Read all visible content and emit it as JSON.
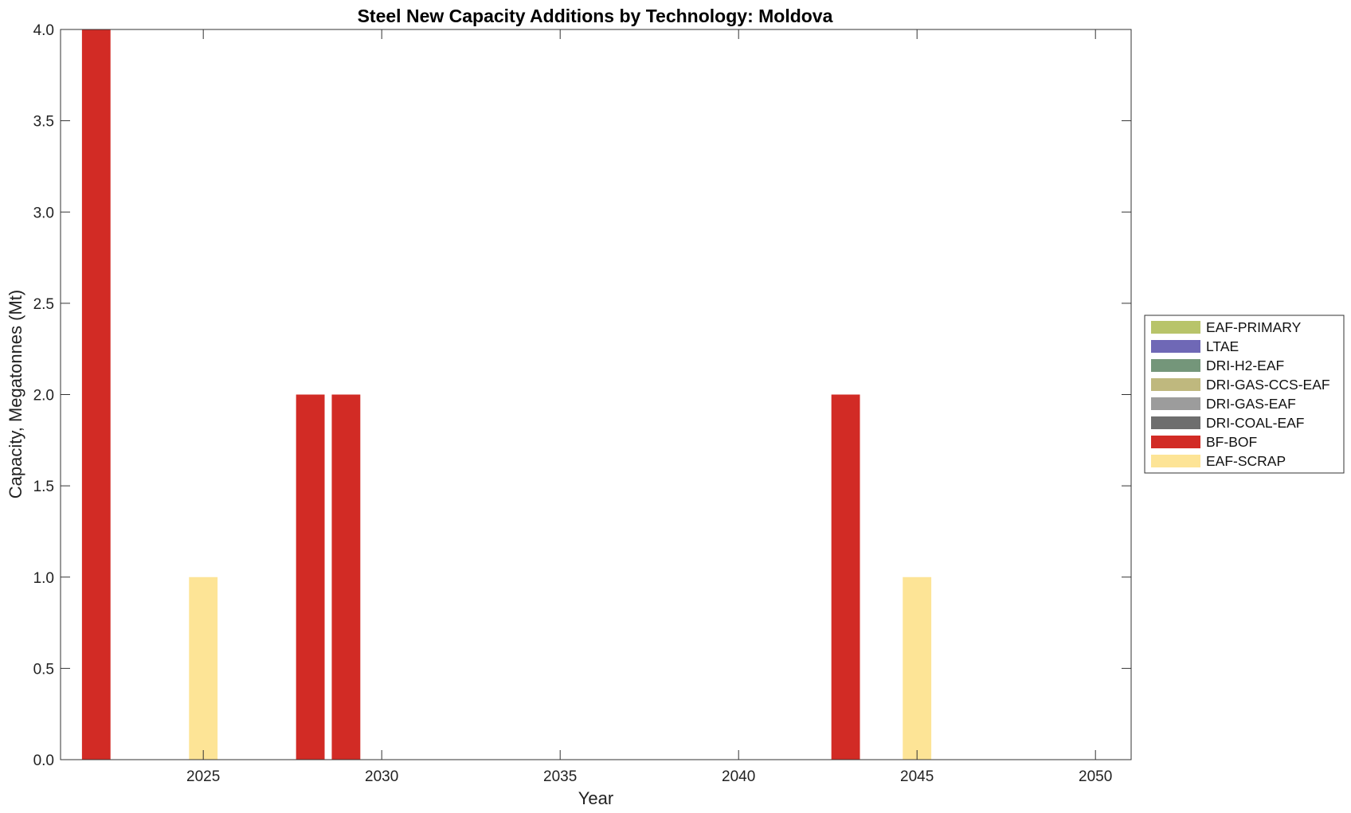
{
  "chart_data": {
    "type": "bar",
    "title": "Steel New Capacity Additions by Technology: Moldova",
    "xlabel": "Year",
    "ylabel": "Capacity, Megatonnes (Mt)",
    "xlim": [
      2021,
      2051
    ],
    "ylim": [
      0,
      4
    ],
    "x_ticks": [
      2025,
      2030,
      2035,
      2040,
      2045,
      2050
    ],
    "y_ticks": [
      "0.0",
      "0.5",
      "1.0",
      "1.5",
      "2.0",
      "2.5",
      "3.0",
      "3.5",
      "4.0"
    ],
    "stacked": true,
    "grid": false,
    "legend_position": "right",
    "x": [
      2022,
      2025,
      2028,
      2029,
      2043,
      2045
    ],
    "series": [
      {
        "name": "EAF-PRIMARY",
        "color": "#b8c46a",
        "values": [
          0,
          0,
          0,
          0,
          0,
          0
        ]
      },
      {
        "name": "LTAE",
        "color": "#6f68b6",
        "values": [
          0,
          0,
          0,
          0,
          0,
          0
        ]
      },
      {
        "name": "DRI-H2-EAF",
        "color": "#74967a",
        "values": [
          0,
          0,
          0,
          0,
          0,
          0
        ]
      },
      {
        "name": "DRI-GAS-CCS-EAF",
        "color": "#bfb87e",
        "values": [
          0,
          0,
          0,
          0,
          0,
          0
        ]
      },
      {
        "name": "DRI-GAS-EAF",
        "color": "#9c9c9c",
        "values": [
          0,
          0,
          0,
          0,
          0,
          0
        ]
      },
      {
        "name": "DRI-COAL-EAF",
        "color": "#6e6e6e",
        "values": [
          0,
          0,
          0,
          0,
          0,
          0
        ]
      },
      {
        "name": "BF-BOF",
        "color": "#d22b25",
        "values": [
          4,
          0,
          2,
          2,
          2,
          0
        ]
      },
      {
        "name": "EAF-SCRAP",
        "color": "#fde496",
        "values": [
          0,
          1,
          0,
          0,
          0,
          1
        ]
      }
    ]
  }
}
